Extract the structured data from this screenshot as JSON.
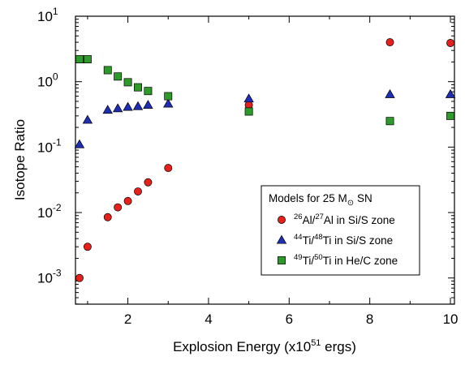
{
  "chart_data": {
    "type": "scatter",
    "title": "",
    "xlabel": {
      "pre": "Explosion Energy (x10",
      "sup": "51",
      "post": " ergs)"
    },
    "ylabel": "Isotope Ratio",
    "xlim": [
      0.7,
      10.1
    ],
    "ylim_log10": [
      -3.4,
      1
    ],
    "yscale": "log",
    "grid": false,
    "x_ticks": [
      2,
      4,
      6,
      8,
      10
    ],
    "x_tick_labels": [
      "2",
      "4",
      "6",
      "8",
      "10"
    ],
    "y_ticks": [
      {
        "value": 0.001,
        "base": "10",
        "exp": "-3"
      },
      {
        "value": 0.01,
        "base": "10",
        "exp": "-2"
      },
      {
        "value": 0.1,
        "base": "10",
        "exp": "-1"
      },
      {
        "value": 1,
        "base": "10",
        "exp": "0"
      },
      {
        "value": 10,
        "base": "10",
        "exp": "1"
      }
    ],
    "legend": {
      "position": "bottom-right",
      "title_pre": "Models for 25 M",
      "title_sub": "⊙",
      "title_post": " SN"
    },
    "series": [
      {
        "label_parts": [
          [
            "sup",
            "26"
          ],
          [
            "txt",
            "Al/"
          ],
          [
            "sup",
            "27"
          ],
          [
            "txt",
            "Al in Si/S zone"
          ]
        ],
        "marker": "circle",
        "color": "#e8201c",
        "x": [
          0.8,
          1.0,
          1.5,
          1.75,
          2.0,
          2.25,
          2.5,
          3.0,
          5.0,
          8.5,
          10.0
        ],
        "y": [
          0.001,
          0.003,
          0.0085,
          0.012,
          0.015,
          0.021,
          0.029,
          0.048,
          0.44,
          4.0,
          3.9
        ]
      },
      {
        "label_parts": [
          [
            "sup",
            "44"
          ],
          [
            "txt",
            "Ti/"
          ],
          [
            "sup",
            "48"
          ],
          [
            "txt",
            "Ti in Si/S zone"
          ]
        ],
        "marker": "triangle",
        "color": "#1f2fb5",
        "x": [
          0.8,
          1.0,
          1.5,
          1.75,
          2.0,
          2.25,
          2.5,
          3.0,
          5.0,
          8.5,
          10.0
        ],
        "y": [
          0.11,
          0.26,
          0.37,
          0.39,
          0.41,
          0.42,
          0.44,
          0.46,
          0.55,
          0.64,
          0.64
        ]
      },
      {
        "label_parts": [
          [
            "sup",
            "49"
          ],
          [
            "txt",
            "Ti/"
          ],
          [
            "sup",
            "50"
          ],
          [
            "txt",
            "Ti in He/C zone"
          ]
        ],
        "marker": "square",
        "color": "#2e9a2a",
        "x": [
          0.8,
          1.0,
          1.5,
          1.75,
          2.0,
          2.25,
          2.5,
          3.0,
          5.0,
          8.5,
          10.0
        ],
        "y": [
          2.2,
          2.2,
          1.5,
          1.2,
          0.98,
          0.82,
          0.72,
          0.6,
          0.35,
          0.25,
          0.3
        ]
      }
    ]
  }
}
